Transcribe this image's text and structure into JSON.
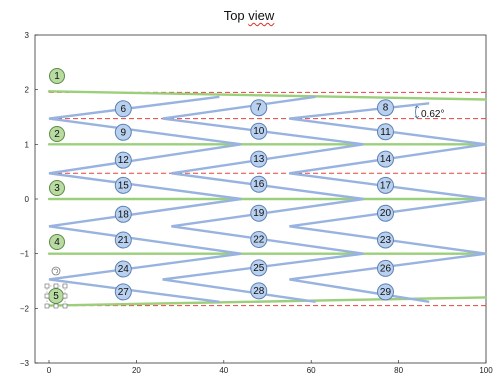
{
  "title_word": "Top",
  "title_word2": "view",
  "annotation": "0.62°",
  "chart_data": {
    "type": "diagram",
    "title": "Top view",
    "xlim": [
      -3,
      100
    ],
    "ylim": [
      -3,
      3
    ],
    "xticks": [
      "0",
      "20",
      "40",
      "60",
      "80",
      "100"
    ],
    "yticks": [
      "3",
      "2",
      "1",
      "0",
      "−1",
      "−2",
      "−3"
    ],
    "green_labels": [
      "1",
      "2",
      "3",
      "4",
      "5"
    ],
    "blue_labels": [
      {
        "n": "6",
        "x": 17,
        "y": 1.65
      },
      {
        "n": "7",
        "x": 48,
        "y": 1.67
      },
      {
        "n": "8",
        "x": 77,
        "y": 1.67
      },
      {
        "n": "9",
        "x": 17,
        "y": 1.22
      },
      {
        "n": "10",
        "x": 48,
        "y": 1.24
      },
      {
        "n": "11",
        "x": 77,
        "y": 1.23
      },
      {
        "n": "12",
        "x": 17,
        "y": 0.71
      },
      {
        "n": "13",
        "x": 48,
        "y": 0.73
      },
      {
        "n": "14",
        "x": 77,
        "y": 0.73
      },
      {
        "n": "15",
        "x": 17,
        "y": 0.25
      },
      {
        "n": "16",
        "x": 48,
        "y": 0.27
      },
      {
        "n": "17",
        "x": 77,
        "y": 0.25
      },
      {
        "n": "18",
        "x": 17,
        "y": -0.28
      },
      {
        "n": "19",
        "x": 48,
        "y": -0.26
      },
      {
        "n": "20",
        "x": 77,
        "y": -0.26
      },
      {
        "n": "21",
        "x": 17,
        "y": -0.75
      },
      {
        "n": "22",
        "x": 48,
        "y": -0.74
      },
      {
        "n": "23",
        "x": 77,
        "y": -0.75
      },
      {
        "n": "24",
        "x": 17,
        "y": -1.28
      },
      {
        "n": "25",
        "x": 48,
        "y": -1.26
      },
      {
        "n": "26",
        "x": 77,
        "y": -1.27
      },
      {
        "n": "27",
        "x": 17,
        "y": -1.7
      },
      {
        "n": "28",
        "x": 48,
        "y": -1.68
      },
      {
        "n": "29",
        "x": 77,
        "y": -1.7
      }
    ],
    "dashed_y": [
      1.95,
      1.47,
      1.0,
      0.47,
      -1.95
    ],
    "green_lines": [
      {
        "x1": 0,
        "y1": 1.97,
        "x2": 100,
        "y2": 1.82
      },
      {
        "x1": 0,
        "y1": 1.0,
        "x2": 100,
        "y2": 1.0
      },
      {
        "x1": 0,
        "y1": 0.0,
        "x2": 100,
        "y2": 0.0
      },
      {
        "x1": 0,
        "y1": -1.0,
        "x2": 100,
        "y2": -1.0
      },
      {
        "x1": 0,
        "y1": -1.95,
        "x2": 100,
        "y2": -1.8
      }
    ],
    "blue_paths": [
      [
        [
          39,
          1.87
        ],
        [
          0,
          1.47
        ],
        [
          44,
          1.0
        ],
        [
          0,
          0.47
        ],
        [
          44,
          0.0
        ],
        [
          0,
          -0.5
        ],
        [
          44,
          -1.0
        ],
        [
          0,
          -1.47
        ],
        [
          39,
          -1.88
        ]
      ],
      [
        [
          61,
          1.87
        ],
        [
          26,
          1.47
        ],
        [
          72,
          1.0
        ],
        [
          28,
          0.47
        ],
        [
          72,
          0.0
        ],
        [
          28,
          -0.5
        ],
        [
          72,
          -1.0
        ],
        [
          26,
          -1.47
        ],
        [
          61,
          -1.88
        ]
      ],
      [
        [
          87,
          1.75
        ],
        [
          55,
          1.47
        ],
        [
          100,
          1.0
        ],
        [
          55,
          0.47
        ],
        [
          100,
          0.0
        ],
        [
          55,
          -0.5
        ],
        [
          100,
          -1.0
        ],
        [
          55,
          -1.47
        ],
        [
          87,
          -1.88
        ]
      ]
    ]
  }
}
